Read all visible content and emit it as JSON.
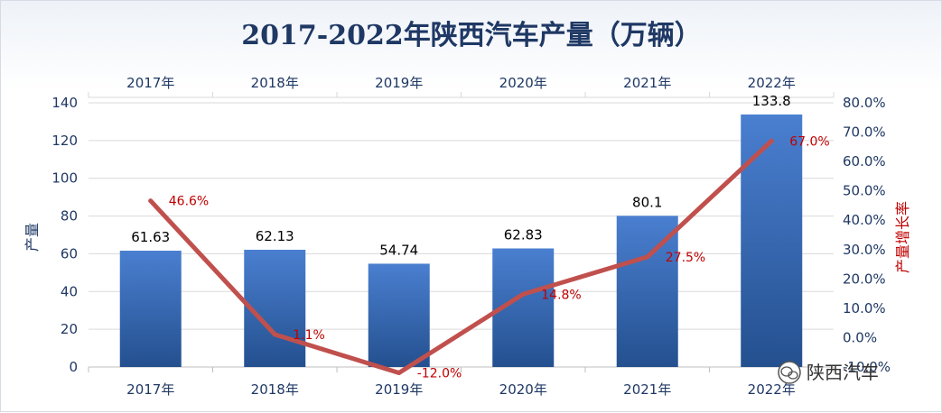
{
  "chart_data": {
    "type": "bar",
    "title": "2017-2022年陕西汽车产量（万辆）",
    "categories": [
      "2017年",
      "2018年",
      "2019年",
      "2020年",
      "2021年",
      "2022年"
    ],
    "series": [
      {
        "name": "产量",
        "type": "bar",
        "axis": "left",
        "values": [
          61.63,
          62.13,
          54.74,
          62.83,
          80.1,
          133.8
        ],
        "labels": [
          "61.63",
          "62.13",
          "54.74",
          "62.83",
          "80.1",
          "133.8"
        ]
      },
      {
        "name": "产量增长率",
        "type": "line",
        "axis": "right",
        "values": [
          46.6,
          1.1,
          -12.0,
          14.8,
          27.5,
          67.0
        ],
        "labels": [
          "46.6%",
          "1.1%",
          "-12.0%",
          "14.8%",
          "27.5%",
          "67.0%"
        ]
      }
    ],
    "ylabel": "产量",
    "y2label": "产量增长率",
    "ylim": [
      0,
      140
    ],
    "yticks": [
      0,
      20,
      40,
      60,
      80,
      100,
      120,
      140
    ],
    "y2lim": [
      -10,
      80
    ],
    "y2ticks": [
      "-10.0%",
      "0.0%",
      "10.0%",
      "20.0%",
      "30.0%",
      "40.0%",
      "50.0%",
      "60.0%",
      "70.0%",
      "80.0%"
    ],
    "y2tick_values": [
      -10,
      0,
      10,
      20,
      30,
      40,
      50,
      60,
      70,
      80
    ],
    "top_axis_labels": true,
    "colors": {
      "bar": "#3567b5",
      "line": "#c0504d",
      "line_label": "#c00000",
      "text": "#1f3864"
    }
  },
  "watermark": {
    "text": "陕西汽车",
    "icon": "wechat-icon"
  }
}
